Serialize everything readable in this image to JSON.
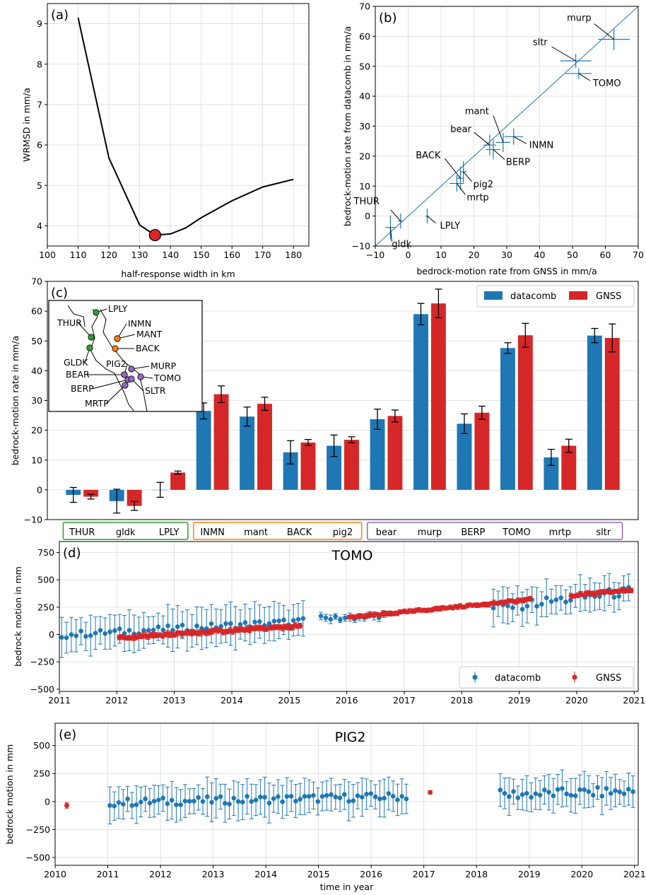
{
  "colors": {
    "datacomb": "#1f77b4",
    "gnss": "#d62728",
    "green": "#2ca02c",
    "orange": "#ff7f0e",
    "purple": "#9467bd",
    "grid": "#dcdcdc"
  },
  "chart_data": [
    {
      "panel": "(a)",
      "type": "line",
      "xlabel": "half-response width in km",
      "ylabel": "WRMSD in mm/a",
      "xlim": [
        100,
        185
      ],
      "ylim": [
        3.5,
        9.5
      ],
      "xticks": [
        100,
        110,
        120,
        130,
        140,
        150,
        160,
        170,
        180
      ],
      "yticks": [
        4,
        5,
        6,
        7,
        8,
        9
      ],
      "x": [
        110,
        120,
        130,
        135,
        140,
        145,
        150,
        160,
        170,
        180
      ],
      "y": [
        9.15,
        5.68,
        4.02,
        3.77,
        3.8,
        3.95,
        4.2,
        4.62,
        4.96,
        5.15
      ],
      "highlight": {
        "x": 135,
        "y": 3.77
      },
      "grid": true
    },
    {
      "panel": "(b)",
      "type": "scatter",
      "xlabel": "bedrock-motion rate from GNSS in mm/a",
      "ylabel": "bedrock-motion rate from datacomb in mm/a",
      "xlim": [
        -10,
        70
      ],
      "ylim": [
        -10,
        70
      ],
      "xticks": [
        -10,
        0,
        10,
        20,
        30,
        40,
        50,
        60,
        70
      ],
      "yticks": [
        -10,
        0,
        10,
        20,
        30,
        40,
        50,
        60,
        70
      ],
      "identity_line": true,
      "grid": true,
      "points": [
        {
          "label": "THUR",
          "x": -2.3,
          "y": -1.7,
          "xerr": 0.8,
          "yerr": 2.5
        },
        {
          "label": "gldk",
          "x": -5.4,
          "y": -3.8,
          "xerr": 1.5,
          "yerr": 4
        },
        {
          "label": "LPLY",
          "x": 5.8,
          "y": 0,
          "xerr": 0.5,
          "yerr": 2.5
        },
        {
          "label": "INMN",
          "x": 32.1,
          "y": 26.5,
          "xerr": 2.8,
          "yerr": 2.7
        },
        {
          "label": "mant",
          "x": 28.9,
          "y": 24.6,
          "xerr": 2.2,
          "yerr": 3.2
        },
        {
          "label": "BACK",
          "x": 15.9,
          "y": 12.6,
          "xerr": 1,
          "yerr": 3.9
        },
        {
          "label": "pig2",
          "x": 16.8,
          "y": 14.8,
          "xerr": 1,
          "yerr": 3.6
        },
        {
          "label": "bear",
          "x": 24.8,
          "y": 23.7,
          "xerr": 2,
          "yerr": 3.4
        },
        {
          "label": "murp",
          "x": 62.6,
          "y": 59,
          "xerr": 4.8,
          "yerr": 3.6
        },
        {
          "label": "BERP",
          "x": 25.9,
          "y": 22.2,
          "xerr": 2.2,
          "yerr": 3.3
        },
        {
          "label": "TOMO",
          "x": 51.9,
          "y": 47.6,
          "xerr": 4,
          "yerr": 1.8
        },
        {
          "label": "mrtp",
          "x": 14.8,
          "y": 10.9,
          "xerr": 2.2,
          "yerr": 2.7
        },
        {
          "label": "sltr",
          "x": 51,
          "y": 51.8,
          "xerr": 4.7,
          "yerr": 2.4
        }
      ]
    },
    {
      "panel": "(c)",
      "type": "bar",
      "ylabel": "bedrock-motion rate in mm/a",
      "ylim": [
        -10,
        70
      ],
      "yticks": [
        -10,
        0,
        10,
        20,
        30,
        40,
        50,
        60,
        70
      ],
      "categories": [
        "THUR",
        "gldk",
        "LPLY",
        "INMN",
        "mant",
        "BACK",
        "pig2",
        "bear",
        "murp",
        "BERP",
        "TOMO",
        "mrtp",
        "sltr"
      ],
      "series": [
        {
          "name": "datacomb",
          "values": [
            -1.7,
            -3.8,
            0,
            26.5,
            24.6,
            12.6,
            14.8,
            23.7,
            59,
            22.2,
            47.6,
            10.9,
            51.8
          ],
          "errors": [
            2.5,
            4,
            2.5,
            2.7,
            3.2,
            3.9,
            3.6,
            3.4,
            3.6,
            3.3,
            1.8,
            2.7,
            2.4
          ]
        },
        {
          "name": "GNSS",
          "values": [
            -2.3,
            -5.4,
            5.8,
            32.1,
            28.9,
            15.9,
            16.8,
            24.8,
            62.6,
            25.9,
            51.9,
            14.8,
            51
          ],
          "errors": [
            0.8,
            1.5,
            0.5,
            2.8,
            2.2,
            1,
            1,
            2,
            4.8,
            2.2,
            4,
            2.2,
            4.7
          ]
        }
      ],
      "legend": "top-right",
      "groups": [
        {
          "labels": [
            "THUR",
            "gldk",
            "LPLY"
          ],
          "color": "green"
        },
        {
          "labels": [
            "INMN",
            "mant",
            "BACK",
            "pig2"
          ],
          "color": "orange"
        },
        {
          "labels": [
            "bear",
            "murp",
            "BERP",
            "TOMO",
            "mrtp",
            "sltr"
          ],
          "color": "purple"
        }
      ],
      "inset_map": {
        "stations": [
          {
            "label": "LPLY",
            "group": "green"
          },
          {
            "label": "THUR",
            "group": "green"
          },
          {
            "label": "GLDK",
            "group": "green"
          },
          {
            "label": "INMN",
            "group": "orange"
          },
          {
            "label": "MANT",
            "group": "orange"
          },
          {
            "label": "BACK",
            "group": "orange"
          },
          {
            "label": "PIG2",
            "group": "purple"
          },
          {
            "label": "MURP",
            "group": "purple"
          },
          {
            "label": "BEAR",
            "group": "purple"
          },
          {
            "label": "TOMO",
            "group": "purple"
          },
          {
            "label": "BERP",
            "group": "purple"
          },
          {
            "label": "SLTR",
            "group": "purple"
          },
          {
            "label": "MRTP",
            "group": "purple"
          }
        ]
      }
    },
    {
      "panel": "(d)",
      "type": "scatter",
      "title": "TOMO",
      "ylabel": "bedrock motion in mm",
      "xlim": [
        2011,
        2021.07
      ],
      "ylim": [
        -520,
        850
      ],
      "xticks": [
        2011,
        2012,
        2013,
        2014,
        2015,
        2016,
        2017,
        2018,
        2019,
        2020,
        2021
      ],
      "yticks": [
        -500,
        -250,
        0,
        250,
        500,
        750
      ],
      "legend": "bottom-right",
      "series": [
        {
          "name": "datacomb",
          "segments": [
            {
              "x0": 2011.04,
              "x1": 2015.25,
              "step": 0.084,
              "y0": -5,
              "slope": 30,
              "err": 200,
              "scatter": 30
            },
            {
              "x0": 2015.55,
              "x1": 2016.65,
              "step": 0.084,
              "y0": 145,
              "slope": 20,
              "err": 40,
              "scatter": 25
            },
            {
              "x0": 2018.55,
              "x1": 2020.98,
              "step": 0.084,
              "y0": 240,
              "slope": 65,
              "err": 175,
              "scatter": 45
            }
          ]
        },
        {
          "name": "GNSS",
          "segments": [
            {
              "x0": 2012.04,
              "x1": 2015.2,
              "step": 0.042,
              "y0": -30,
              "slope": 34,
              "err": 30,
              "scatter": 12
            },
            {
              "x0": 2016.04,
              "x1": 2019.2,
              "step": 0.042,
              "y0": 155,
              "slope": 52,
              "err": 25,
              "scatter": 8
            },
            {
              "x0": 2019.9,
              "x1": 2020.98,
              "step": 0.042,
              "y0": 355,
              "slope": 50,
              "err": 25,
              "scatter": 10
            }
          ]
        }
      ],
      "grid": true
    },
    {
      "panel": "(e)",
      "type": "scatter",
      "title": "PIG2",
      "xlabel": "time in year",
      "ylabel": "bedrock motion in mm",
      "xlim": [
        2010,
        2021.07
      ],
      "ylim": [
        -570,
        700
      ],
      "xticks": [
        2010,
        2011,
        2012,
        2013,
        2014,
        2015,
        2016,
        2017,
        2018,
        2019,
        2020,
        2021
      ],
      "yticks": [
        -500,
        -250,
        0,
        250,
        500
      ],
      "series": [
        {
          "name": "datacomb",
          "segments": [
            {
              "x0": 2011.04,
              "x1": 2016.7,
              "step": 0.084,
              "y0": -10,
              "slope": 10,
              "err": 180,
              "scatter": 35
            },
            {
              "x0": 2018.45,
              "x1": 2020.98,
              "step": 0.084,
              "y0": 60,
              "slope": 12,
              "err": 170,
              "scatter": 45
            }
          ]
        },
        {
          "name": "GNSS",
          "points": [
            {
              "x": 2010.22,
              "y": -35,
              "err": 25
            },
            {
              "x": 2017.12,
              "y": 82,
              "err": 15
            }
          ]
        }
      ],
      "grid": true
    }
  ]
}
